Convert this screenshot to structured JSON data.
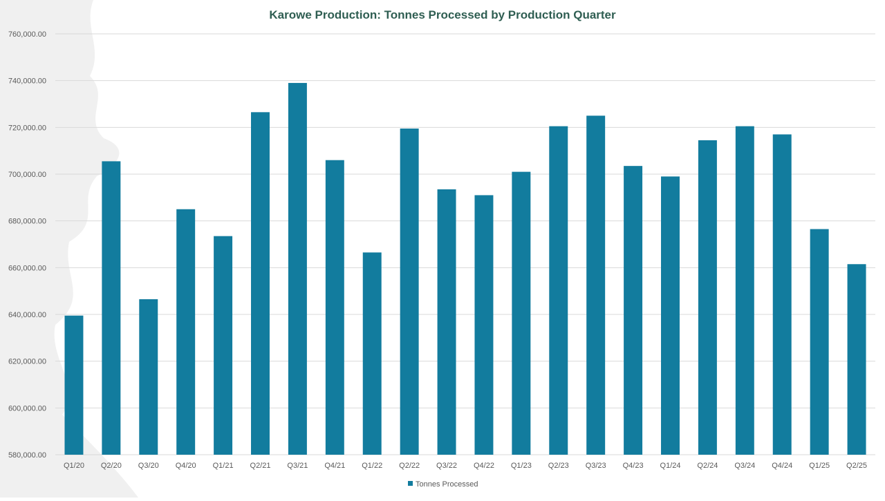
{
  "colors": {
    "bar": "#127c9e",
    "title": "#2f5e52",
    "grid": "#d9d9d9",
    "axis_text": "#595959",
    "watermark": "#f0f0f0"
  },
  "chart_data": {
    "type": "bar",
    "title": "Karowe Production: Tonnes Processed by Production Quarter",
    "xlabel": "",
    "ylabel": "",
    "ylim": [
      580000,
      760000
    ],
    "ytick_step": 20000,
    "ytick_labels": [
      "580,000.00",
      "600,000.00",
      "620,000.00",
      "640,000.00",
      "660,000.00",
      "680,000.00",
      "700,000.00",
      "720,000.00",
      "740,000.00",
      "760,000.00"
    ],
    "grid": true,
    "legend_position": "bottom",
    "categories": [
      "Q1/20",
      "Q2/20",
      "Q3/20",
      "Q4/20",
      "Q1/21",
      "Q2/21",
      "Q3/21",
      "Q4/21",
      "Q1/22",
      "Q2/22",
      "Q3/22",
      "Q4/22",
      "Q1/23",
      "Q2/23",
      "Q3/23",
      "Q4/23",
      "Q1/24",
      "Q2/24",
      "Q3/24",
      "Q4/24",
      "Q1/25",
      "Q2/25"
    ],
    "series": [
      {
        "name": "Tonnes Processed",
        "values": [
          639500,
          705500,
          646500,
          685000,
          673500,
          726500,
          739000,
          706000,
          666500,
          719500,
          693500,
          691000,
          701000,
          720500,
          725000,
          703500,
          699000,
          714500,
          720500,
          717000,
          676500,
          661500
        ]
      }
    ]
  }
}
